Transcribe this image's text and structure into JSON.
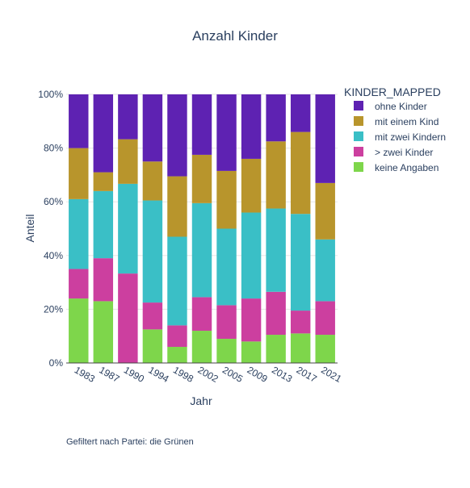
{
  "chart_data": {
    "type": "bar",
    "stacked": true,
    "title": "Anzahl Kinder",
    "xlabel": "Jahr",
    "ylabel": "Anteil",
    "ylim": [
      0,
      1
    ],
    "y_tick_values": [
      0,
      0.2,
      0.4,
      0.6,
      0.8,
      1.0
    ],
    "y_tick_labels": [
      "0%",
      "20%",
      "40%",
      "60%",
      "80%",
      "100%"
    ],
    "grid": true,
    "legend_placement": "top-right",
    "legend_title": "KINDER_MAPPED",
    "categories": [
      "1983",
      "1987",
      "1990",
      "1994",
      "1998",
      "2002",
      "2005",
      "2009",
      "2013",
      "2017",
      "2021"
    ],
    "series": [
      {
        "name": "keine Angaben",
        "color": "#7ed64b",
        "values": [
          0.24,
          0.23,
          0.0,
          0.125,
          0.06,
          0.12,
          0.09,
          0.08,
          0.105,
          0.11,
          0.105
        ]
      },
      {
        "name": "> zwei Kinder",
        "color": "#cc3f9f",
        "values": [
          0.11,
          0.16,
          0.333,
          0.1,
          0.08,
          0.125,
          0.125,
          0.16,
          0.16,
          0.085,
          0.125
        ]
      },
      {
        "name": "mit zwei Kindern",
        "color": "#3abfc6",
        "values": [
          0.26,
          0.25,
          0.334,
          0.38,
          0.33,
          0.35,
          0.285,
          0.32,
          0.31,
          0.36,
          0.23
        ]
      },
      {
        "name": "mit einem Kind",
        "color": "#b8952c",
        "values": [
          0.19,
          0.07,
          0.166,
          0.145,
          0.225,
          0.18,
          0.215,
          0.2,
          0.25,
          0.305,
          0.21
        ]
      },
      {
        "name": "ohne Kinder",
        "color": "#5e22b2",
        "values": [
          0.2,
          0.29,
          0.167,
          0.25,
          0.305,
          0.225,
          0.285,
          0.24,
          0.175,
          0.14,
          0.33
        ]
      }
    ],
    "legend_order": [
      "ohne Kinder",
      "mit einem Kind",
      "mit zwei Kindern",
      "> zwei Kinder",
      "keine Angaben"
    ]
  },
  "footnote": "Gefiltert nach Partei: die Grünen"
}
